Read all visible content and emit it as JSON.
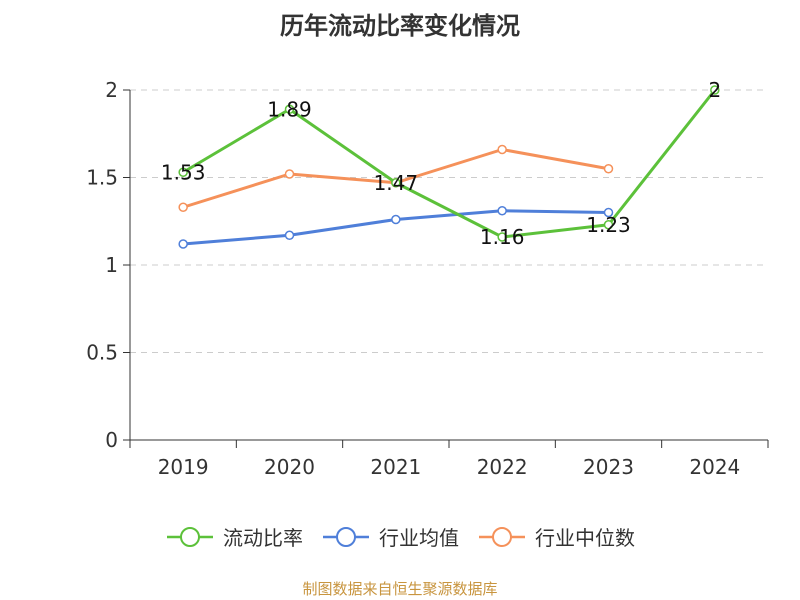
{
  "chart_data": {
    "type": "line",
    "title": "历年流动比率变化情况",
    "categories": [
      "2019",
      "2020",
      "2021",
      "2022",
      "2023",
      "2024"
    ],
    "series": [
      {
        "name": "流动比率",
        "color": "#5cc13a",
        "values": [
          1.53,
          1.89,
          1.47,
          1.16,
          1.23,
          2
        ],
        "labels": [
          "1.53",
          "1.89",
          "1.47",
          "1.16",
          "1.23",
          "2"
        ]
      },
      {
        "name": "行业均值",
        "color": "#4f7fd9",
        "values": [
          1.12,
          1.17,
          1.26,
          1.31,
          1.3,
          null
        ],
        "labels": []
      },
      {
        "name": "行业中位数",
        "color": "#f5915a",
        "values": [
          1.33,
          1.52,
          1.47,
          1.66,
          1.55,
          null
        ],
        "labels": []
      }
    ],
    "yticks": [
      "0",
      "0.5",
      "1",
      "1.5",
      "2"
    ],
    "ylim": [
      0,
      2
    ],
    "xlabel": "",
    "ylabel": "",
    "grid": true,
    "legend": "bottom",
    "source": "制图数据来自恒生聚源数据库"
  }
}
